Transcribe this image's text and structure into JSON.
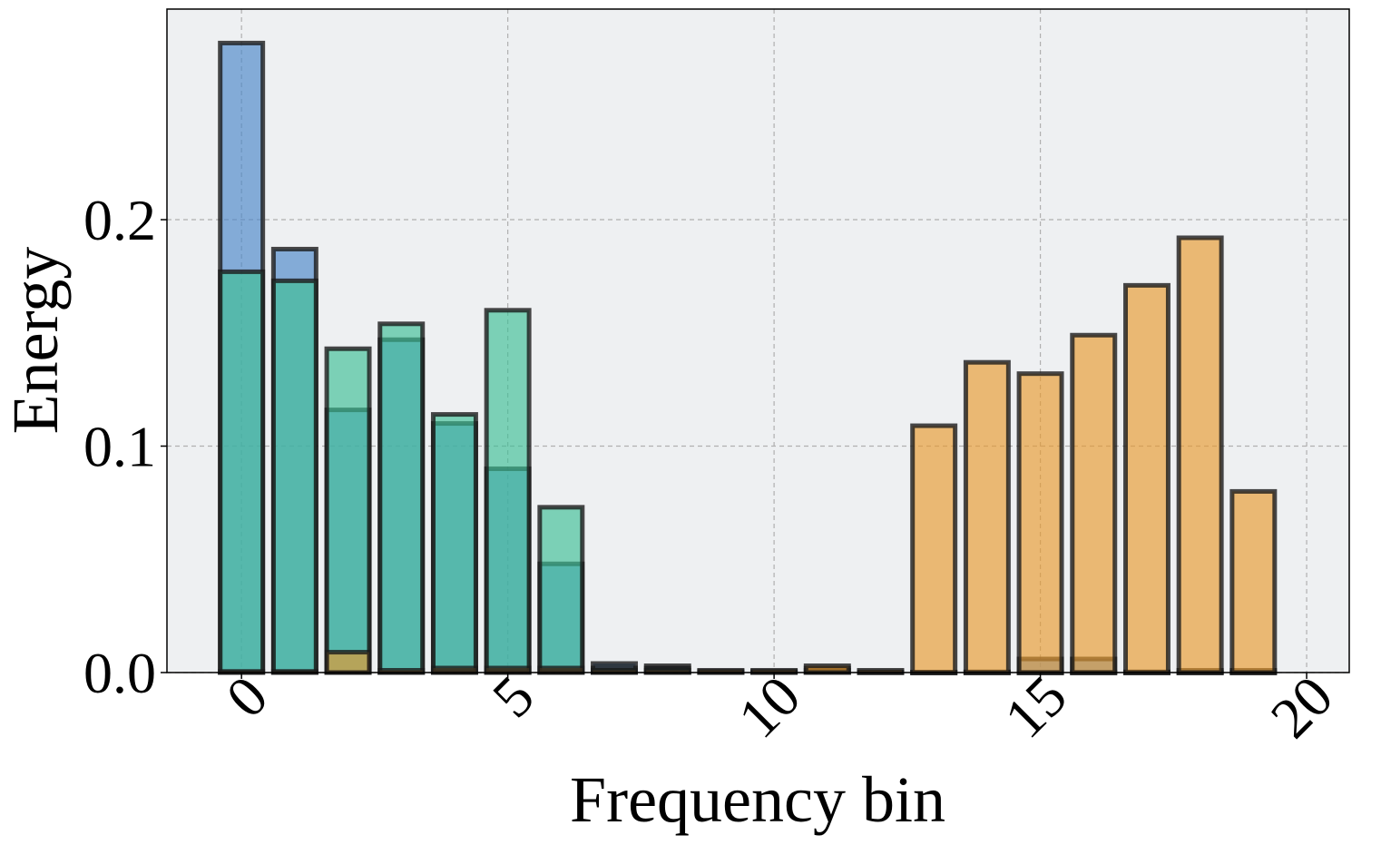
{
  "chart_data": {
    "type": "bar",
    "title": "",
    "xlabel": "Frequency bin",
    "ylabel": "Energy",
    "xlim": [
      -1.4,
      20.8
    ],
    "ylim": [
      0,
      0.293
    ],
    "grid": true,
    "x_ticks": [
      0,
      5,
      10,
      15,
      20
    ],
    "x_tick_labels": [
      "0",
      "5",
      "10",
      "15",
      "20"
    ],
    "y_ticks": [
      0.0,
      0.1,
      0.2
    ],
    "y_tick_labels": [
      "0.0",
      "0.1",
      "0.2"
    ],
    "categories": [
      0,
      1,
      2,
      3,
      4,
      5,
      6,
      7,
      8,
      9,
      10,
      11,
      12,
      13,
      14,
      15,
      16,
      17,
      18,
      19
    ],
    "series": [
      {
        "name": "blue",
        "color": "#4a85c8",
        "values": [
          0.278,
          0.187,
          0.116,
          0.147,
          0.11,
          0.09,
          0.048,
          0.004,
          0.003,
          0.0005,
          0.0005,
          0.002,
          0.0003,
          0.0002,
          0.0003,
          0.006,
          0.006,
          0.0003,
          0.001,
          0.001
        ]
      },
      {
        "name": "green",
        "color": "#3dbf95",
        "values": [
          0.177,
          0.173,
          0.143,
          0.154,
          0.114,
          0.16,
          0.073,
          0.002,
          0.002,
          0.0003,
          0.0003,
          0.001,
          0.0002,
          0.0001,
          0.0001,
          0.0001,
          0.0001,
          0.0001,
          0.0001,
          0.0001
        ]
      },
      {
        "name": "orange",
        "color": "#e8992e",
        "values": [
          0.0005,
          0.0005,
          0.009,
          0.001,
          0.002,
          0.002,
          0.002,
          0.001,
          0.001,
          0.001,
          0.001,
          0.003,
          0.001,
          0.109,
          0.137,
          0.132,
          0.149,
          0.171,
          0.192,
          0.08
        ]
      }
    ]
  }
}
